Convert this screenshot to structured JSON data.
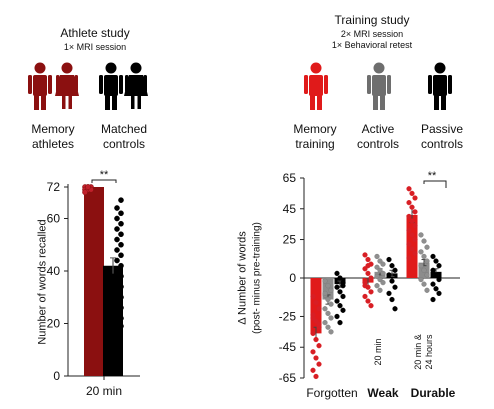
{
  "athlete_study": {
    "title": "Athlete study",
    "subtitle": "1× MRI session",
    "groups": [
      {
        "label_line1": "Memory",
        "label_line2": "athletes",
        "color": "#8b1010"
      },
      {
        "label_line1": "Matched",
        "label_line2": "controls",
        "color": "#000000"
      }
    ]
  },
  "training_study": {
    "title": "Training study",
    "subtitle1": "2× MRI session",
    "subtitle2": "1× Behavioral retest",
    "groups": [
      {
        "label_line1": "Memory",
        "label_line2": "training",
        "color": "#e01a1a"
      },
      {
        "label_line1": "Active",
        "label_line2": "controls",
        "color": "#6e6e6e"
      },
      {
        "label_line1": "Passive",
        "label_line2": "controls",
        "color": "#000000"
      }
    ]
  },
  "chart_data": [
    {
      "type": "bar",
      "ylabel": "Number of words recalled",
      "categories": [
        "20 min"
      ],
      "yticks": [
        0,
        20,
        40,
        60,
        72
      ],
      "ylim": [
        0,
        72
      ],
      "significance": "**",
      "series": [
        {
          "color": "#8b1010",
          "values": [
            72
          ],
          "error": 0,
          "points": [
            72,
            72,
            72,
            71,
            71,
            71,
            70,
            72
          ]
        },
        {
          "color": "#000000",
          "values": [
            42
          ],
          "error": 3,
          "points": [
            67,
            64,
            62,
            60,
            58,
            56,
            54,
            52,
            50,
            48,
            46,
            44,
            42,
            40,
            38,
            36,
            34,
            32,
            30,
            28,
            26,
            24,
            22,
            20,
            19
          ]
        }
      ]
    },
    {
      "type": "bar",
      "ylabel_line1": "Δ Number of words",
      "ylabel_line2": "(post- minus pre-training)",
      "categories": [
        "Forgotten",
        "Weak",
        "Durable"
      ],
      "category_notes": [
        "",
        "20 min",
        "20 min &\n24 hours"
      ],
      "yticks": [
        65,
        45,
        25,
        0,
        -25,
        -45,
        -65
      ],
      "ylim": [
        -65,
        65
      ],
      "significance": "**",
      "series": [
        {
          "color": "#e01a1a",
          "values": [
            -36,
            -3,
            41
          ],
          "error": [
            4,
            3,
            5
          ],
          "points": [
            [
              -12,
              -16,
              -20,
              -24,
              -28,
              -32,
              -36,
              -40,
              -44,
              -48,
              -52,
              -56,
              -60,
              -64,
              -30,
              -26
            ],
            [
              15,
              12,
              9,
              6,
              3,
              0,
              -3,
              -6,
              -9,
              -12,
              -15,
              -18,
              -5,
              8
            ],
            [
              58,
              55,
              52,
              49,
              46,
              43,
              40,
              37,
              34,
              31,
              28,
              25,
              22,
              19,
              16,
              13
            ]
          ]
        },
        {
          "color": "#8c8c8c",
          "values": [
            -14,
            4,
            10
          ],
          "error": [
            3,
            2,
            2
          ],
          "points": [
            [
              -2,
              -5,
              -8,
              -11,
              -14,
              -17,
              -20,
              -23,
              -26,
              -29,
              -32,
              -35,
              -10
            ],
            [
              14,
              11,
              9,
              7,
              5,
              3,
              1,
              -1,
              -3,
              -5,
              -8
            ],
            [
              28,
              24,
              20,
              17,
              14,
              11,
              8,
              5,
              2,
              -1,
              -4,
              -8
            ]
          ]
        },
        {
          "color": "#000000",
          "values": [
            -4,
            3,
            4
          ],
          "error": [
            2,
            2,
            2
          ],
          "points": [
            [
              3,
              0,
              -3,
              -6,
              -9,
              -12,
              -15,
              -18,
              -21,
              -25,
              -29,
              -5
            ],
            [
              12,
              8,
              5,
              2,
              -2,
              -6,
              -10,
              -14,
              -20
            ],
            [
              14,
              11,
              8,
              5,
              2,
              -1,
              -4,
              -7,
              -10,
              -14
            ]
          ]
        }
      ]
    }
  ]
}
